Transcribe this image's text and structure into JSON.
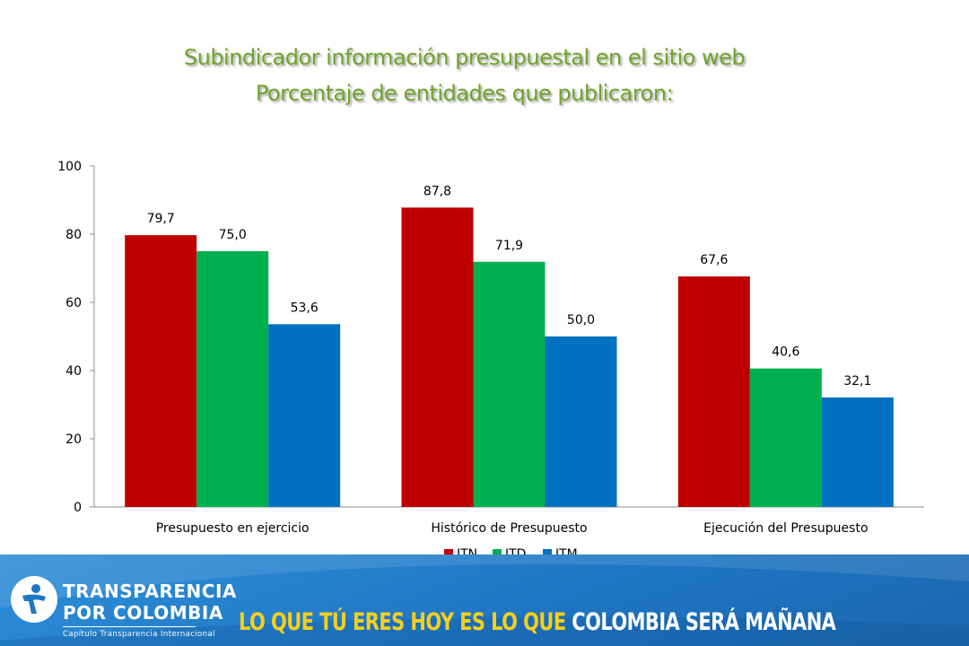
{
  "header": {
    "title_line1": "Subindicador información presupuestal en el sitio web",
    "title_line2": "Porcentaje de entidades que publicaron:"
  },
  "chart_data": {
    "type": "bar",
    "categories": [
      "Presupuesto en ejercicio",
      "Histórico de Presupuesto",
      "Ejecución del Presupuesto"
    ],
    "series": [
      {
        "name": "ITN",
        "values": [
          79.7,
          87.8,
          67.6
        ],
        "color": "#c00000"
      },
      {
        "name": "ITD",
        "values": [
          75.0,
          71.9,
          40.6
        ],
        "color": "#00b050"
      },
      {
        "name": "ITM",
        "values": [
          53.6,
          50.0,
          32.1
        ],
        "color": "#0070c0"
      }
    ],
    "data_labels": [
      [
        "79,7",
        "87,8",
        "67,6"
      ],
      [
        "75,0",
        "71,9",
        "40,6"
      ],
      [
        "53,6",
        "50,0",
        "32,1"
      ]
    ],
    "yticks": [
      "0",
      "20",
      "40",
      "60",
      "80",
      "100"
    ],
    "ylim": [
      0,
      100
    ],
    "grid": false,
    "legend_position": "bottom",
    "title": "Subindicador información presupuestal en el sitio web · Porcentaje de entidades que publicaron:"
  },
  "footer": {
    "org_line1": "TRANSPARENCIA",
    "org_line2": "POR COLOMBIA",
    "org_subtitle": "Capítulo Transparencia Internacional",
    "slogan_part1": "LO QUE TÚ ERES HOY ES LO QUE ",
    "slogan_part2": "COLOMBIA SERÁ MAÑANA",
    "colors": {
      "footer_blue": "#1f76c4",
      "slogan_yellow": "#f4cf1e"
    }
  }
}
